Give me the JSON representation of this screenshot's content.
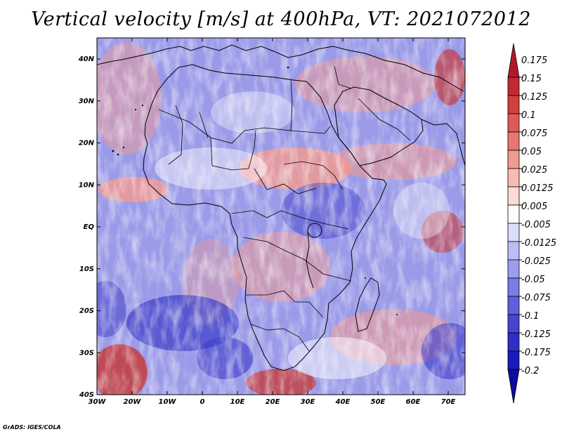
{
  "title": "Vertical velocity [m/s] at 400hPa, VT: 2021072012",
  "credit": "GrADS: IGES/COLA",
  "lat_labels": [
    "40N",
    "30N",
    "20N",
    "10N",
    "EQ",
    "10S",
    "20S",
    "30S",
    "40S"
  ],
  "lon_labels": [
    "30W",
    "20W",
    "10W",
    "0",
    "10E",
    "20E",
    "30E",
    "40E",
    "50E",
    "60E",
    "70E"
  ],
  "colorbar": {
    "labels": [
      "0.175",
      "0.15",
      "0.125",
      "0.1",
      "0.075",
      "0.05",
      "0.025",
      "0.0125",
      "0.005",
      "-0.005",
      "-0.0125",
      "-0.025",
      "-0.05",
      "-0.075",
      "-0.1",
      "-0.125",
      "-0.175",
      "-0.2"
    ],
    "colors": [
      "#b2182b",
      "#c22a32",
      "#d23f3f",
      "#df5a56",
      "#e8776f",
      "#f09a90",
      "#f6bcb3",
      "#fbdcd6",
      "#ffffff",
      "#dcdcfb",
      "#bcbcf6",
      "#9c9cf0",
      "#7c7ce6",
      "#5f5fdc",
      "#4545d2",
      "#2e2ec6",
      "#1a1ab8",
      "#0c0c9e"
    ]
  },
  "field_colors": {
    "blue_bg": "#9a9ae8",
    "red_bg": "#ee9a94",
    "white": "#ffffff",
    "deep_blue": "#3c3cc8",
    "deep_red": "#c43c3c",
    "coast": "#000000"
  }
}
